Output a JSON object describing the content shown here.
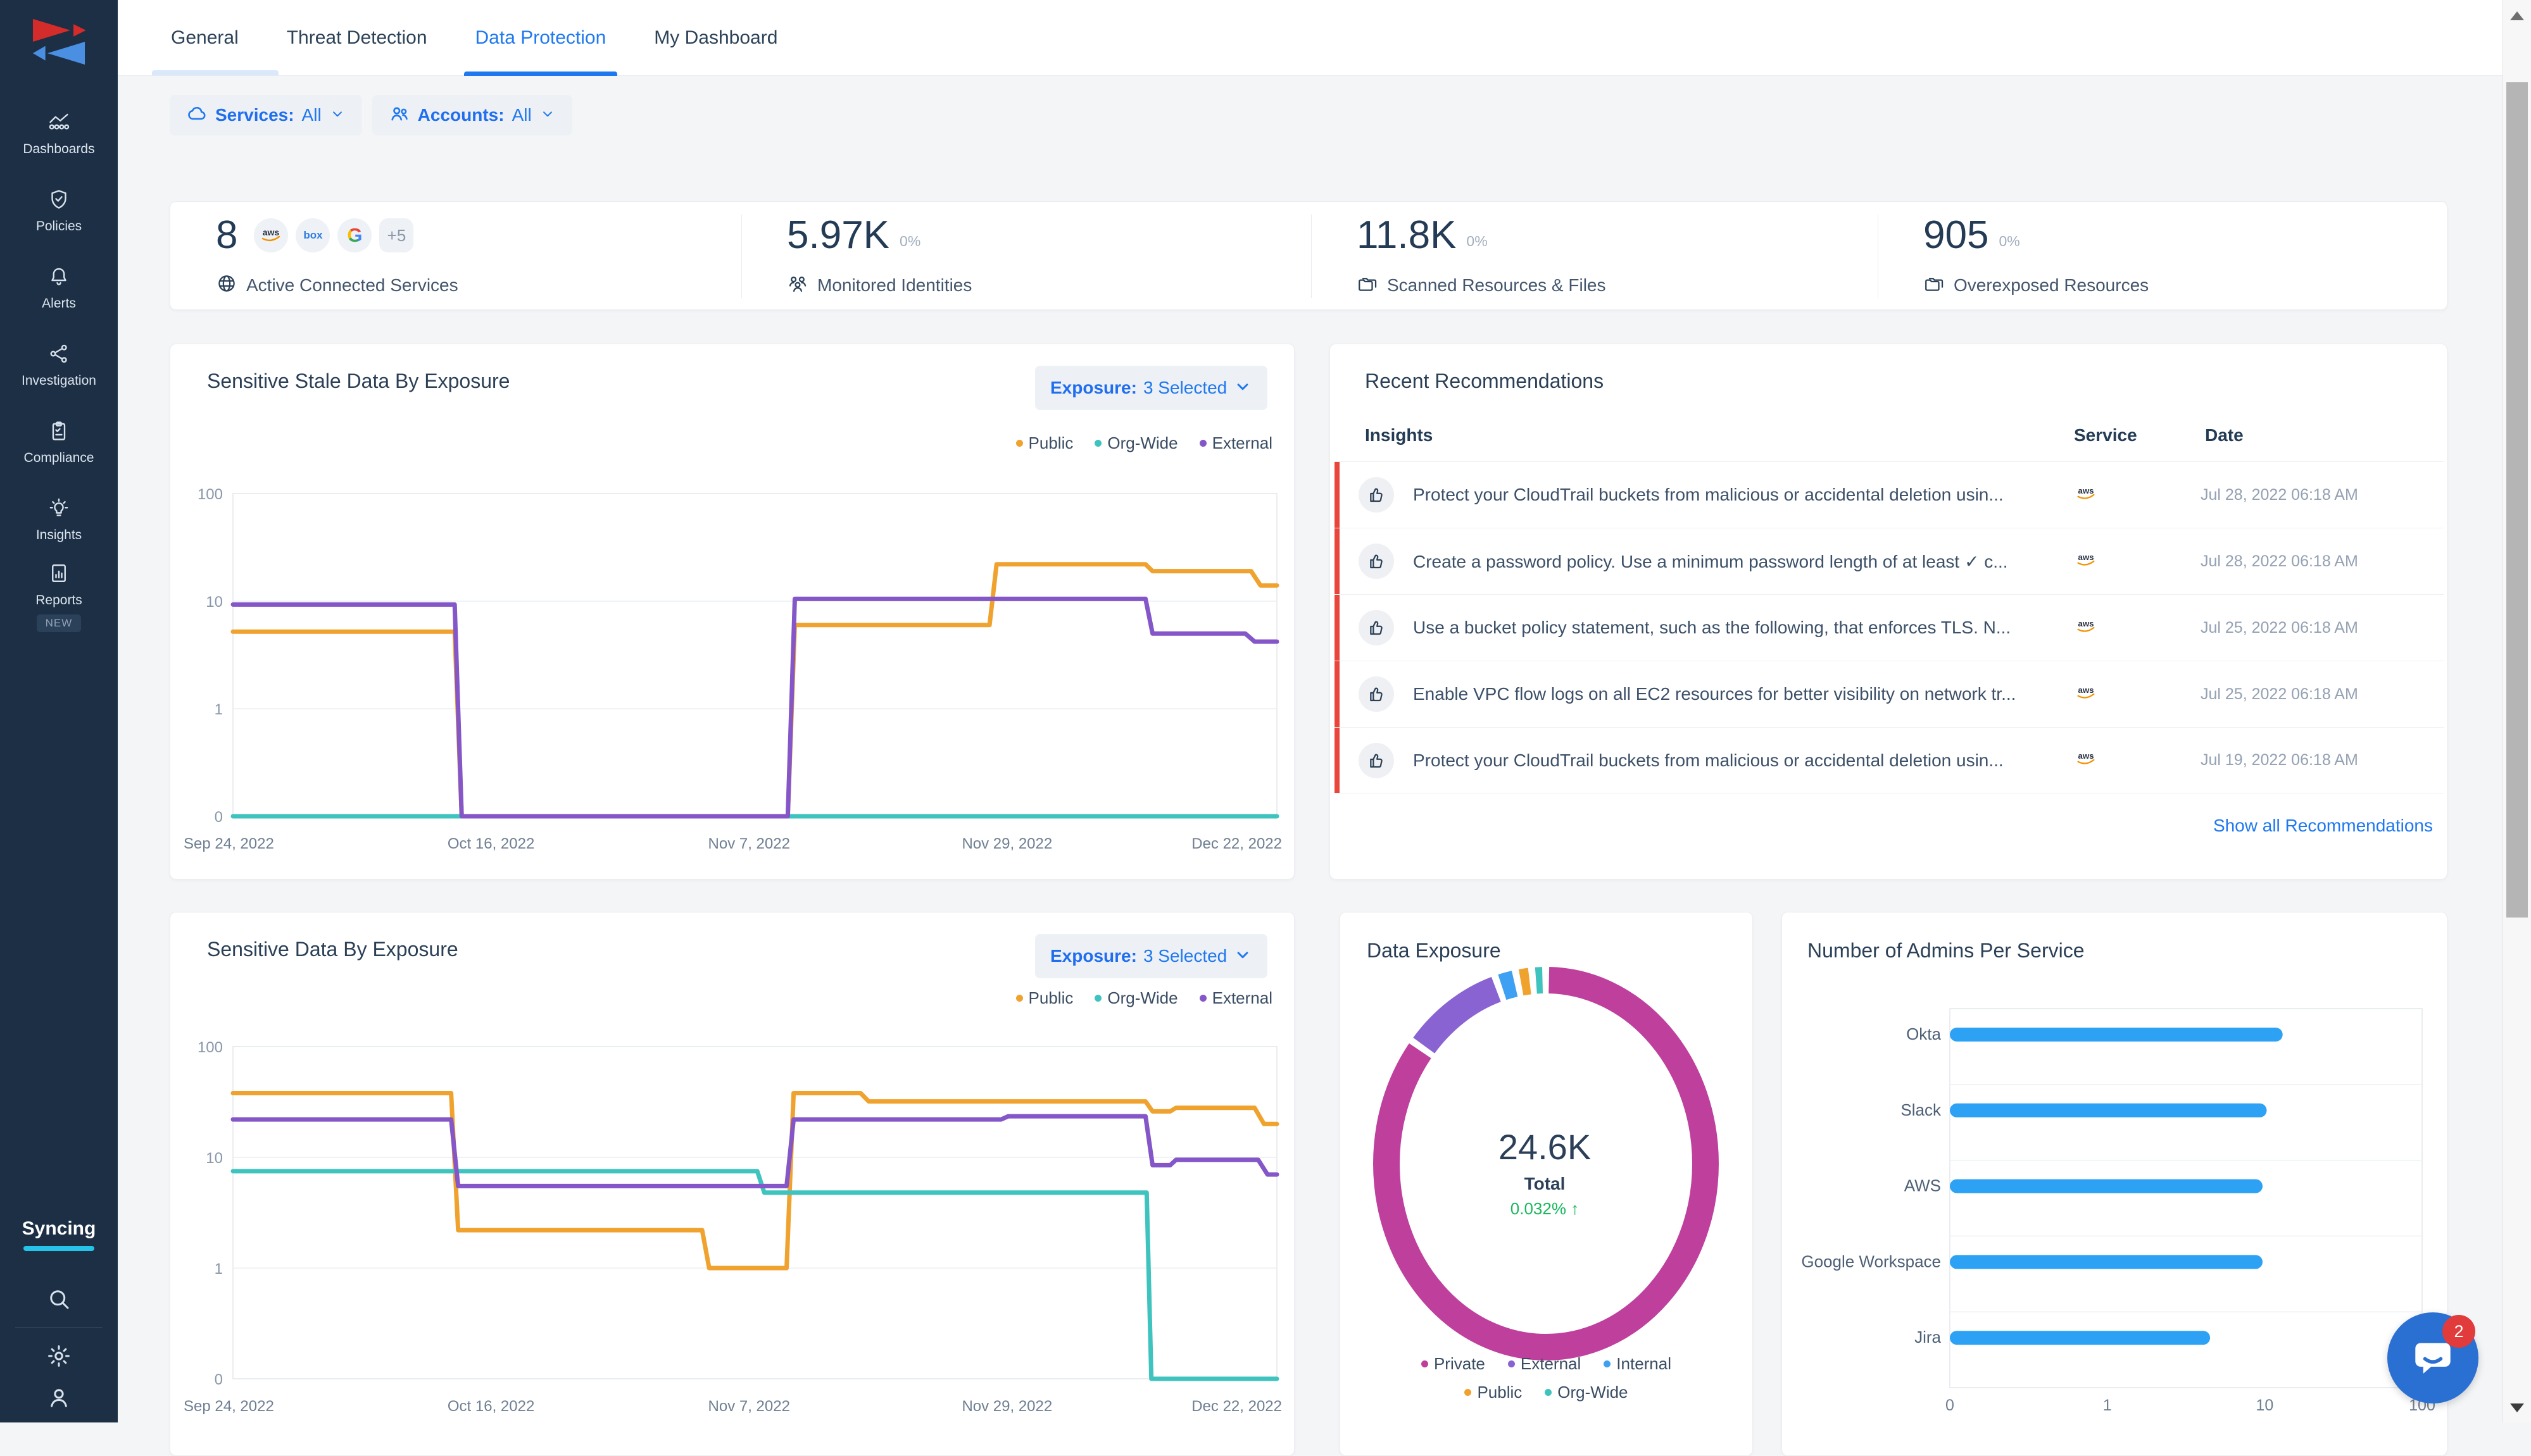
{
  "sidebar": {
    "items": [
      {
        "label": "Dashboards"
      },
      {
        "label": "Policies"
      },
      {
        "label": "Alerts"
      },
      {
        "label": "Investigation"
      },
      {
        "label": "Compliance"
      },
      {
        "label": "Insights"
      },
      {
        "label": "Reports"
      }
    ],
    "new_badge": "NEW",
    "syncing": "Syncing"
  },
  "tabs": [
    {
      "label": "General"
    },
    {
      "label": "Threat Detection"
    },
    {
      "label": "Data Protection",
      "active": true
    },
    {
      "label": "My Dashboard"
    }
  ],
  "filters": {
    "services_label": "Services:",
    "services_value": "All",
    "accounts_label": "Accounts:",
    "accounts_value": "All"
  },
  "stats": [
    {
      "value": "8",
      "label": "Active Connected Services",
      "services": [
        "aws",
        "box",
        "google"
      ],
      "more": "+5"
    },
    {
      "value": "5.97K",
      "delta": "0%",
      "label": "Monitored Identities"
    },
    {
      "value": "11.8K",
      "delta": "0%",
      "label": "Scanned Resources & Files"
    },
    {
      "value": "905",
      "delta": "0%",
      "label": "Overexposed Resources"
    }
  ],
  "recommendations": {
    "title": "Recent Recommendations",
    "columns": {
      "insights": "Insights",
      "service": "Service",
      "date": "Date"
    },
    "rows": [
      {
        "text": "Protect your CloudTrail buckets from malicious or accidental deletion usin...",
        "service": "aws",
        "date": "Jul 28, 2022 06:18 AM"
      },
      {
        "text": "Create a password policy. Use a minimum password length of at least ✓ c...",
        "service": "aws",
        "date": "Jul 28, 2022 06:18 AM"
      },
      {
        "text": "Use a bucket policy statement, such as the following, that enforces TLS. N...",
        "service": "aws",
        "date": "Jul 25, 2022 06:18 AM"
      },
      {
        "text": "Enable VPC flow logs on all EC2 resources for better visibility on network tr...",
        "service": "aws",
        "date": "Jul 25, 2022 06:18 AM"
      },
      {
        "text": "Protect your CloudTrail buckets from malicious or accidental deletion usin...",
        "service": "aws",
        "date": "Jul 19, 2022 06:18 AM"
      }
    ],
    "link": "Show all Recommendations"
  },
  "chart_data": [
    {
      "id": "stale",
      "type": "line",
      "title": "Sensitive Stale Data By Exposure",
      "filter_label": "Exposure:",
      "filter_value": "3 Selected",
      "yscale": "symlog",
      "yticks": [
        100,
        10,
        1,
        0
      ],
      "ylim": [
        0,
        100
      ],
      "grid": true,
      "legend_position": "top-right",
      "xticks": [
        "Sep 24, 2022",
        "Oct 16, 2022",
        "Nov 7, 2022",
        "Nov 29, 2022",
        "Dec 22, 2022"
      ],
      "xtick_days": [
        0,
        22,
        44,
        66,
        89
      ],
      "x_range_days": 89,
      "series": [
        {
          "name": "Public",
          "color": "#f0a22e",
          "points": [
            [
              0,
              5.2
            ],
            [
              18.9,
              5.2
            ],
            [
              19.5,
              0
            ],
            [
              47.3,
              0
            ],
            [
              47.9,
              6
            ],
            [
              64.5,
              6
            ],
            [
              65.1,
              22
            ],
            [
              77.8,
              22
            ],
            [
              78.4,
              19
            ],
            [
              86.8,
              19
            ],
            [
              87.6,
              14
            ],
            [
              89,
              14
            ]
          ]
        },
        {
          "name": "Org-Wide",
          "color": "#3fc3bf",
          "points": [
            [
              0,
              0
            ],
            [
              89,
              0
            ]
          ]
        },
        {
          "name": "External",
          "color": "#8456c8",
          "points": [
            [
              0,
              9.3
            ],
            [
              18.9,
              9.3
            ],
            [
              19.5,
              0
            ],
            [
              47.3,
              0
            ],
            [
              47.9,
              10.5
            ],
            [
              77.8,
              10.5
            ],
            [
              78.4,
              5
            ],
            [
              86.3,
              5
            ],
            [
              87.1,
              4.2
            ],
            [
              89,
              4.2
            ]
          ]
        }
      ]
    },
    {
      "id": "sensitive",
      "type": "line",
      "title": "Sensitive Data By Exposure",
      "filter_label": "Exposure:",
      "filter_value": "3 Selected",
      "yscale": "symlog",
      "yticks": [
        100,
        10,
        1,
        0
      ],
      "ylim": [
        0,
        100
      ],
      "grid": true,
      "legend_position": "top-right",
      "xticks": [
        "Sep 24, 2022",
        "Oct 16, 2022",
        "Nov 7, 2022",
        "Nov 29, 2022",
        "Dec 22, 2022"
      ],
      "xtick_days": [
        0,
        22,
        44,
        66,
        89
      ],
      "x_range_days": 89,
      "series": [
        {
          "name": "Public",
          "color": "#f0a22e",
          "points": [
            [
              0,
              38
            ],
            [
              18.6,
              38
            ],
            [
              19.2,
              2.2
            ],
            [
              40,
              2.2
            ],
            [
              40.6,
              1
            ],
            [
              47.2,
              1
            ],
            [
              47.8,
              38
            ],
            [
              53.5,
              38
            ],
            [
              54.2,
              32
            ],
            [
              77.8,
              32
            ],
            [
              78.4,
              26
            ],
            [
              79.9,
              26
            ],
            [
              80.4,
              28
            ],
            [
              87.1,
              28
            ],
            [
              87.9,
              20
            ],
            [
              89,
              20
            ]
          ]
        },
        {
          "name": "Org-Wide",
          "color": "#3fc3bf",
          "points": [
            [
              0,
              7.5
            ],
            [
              44.7,
              7.5
            ],
            [
              45.3,
              4.8
            ],
            [
              77.9,
              4.8
            ],
            [
              78.3,
              0
            ],
            [
              89,
              0
            ]
          ]
        },
        {
          "name": "External",
          "color": "#8456c8",
          "points": [
            [
              0,
              22
            ],
            [
              18.6,
              22
            ],
            [
              19.2,
              5.5
            ],
            [
              47.2,
              5.5
            ],
            [
              47.8,
              22
            ],
            [
              65.5,
              22
            ],
            [
              66.1,
              23.5
            ],
            [
              77.8,
              23.5
            ],
            [
              78.4,
              8.5
            ],
            [
              79.9,
              8.5
            ],
            [
              80.4,
              9.5
            ],
            [
              87.4,
              9.5
            ],
            [
              88.2,
              7
            ],
            [
              89,
              7
            ]
          ]
        }
      ]
    },
    {
      "id": "exposure",
      "type": "pie",
      "title": "Data Exposure",
      "total": "24.6K",
      "total_label": "Total",
      "delta": "0.032%",
      "delta_arrow": "↑",
      "slices": [
        {
          "name": "Private",
          "color": "#bf3f9d",
          "pct": 86.4
        },
        {
          "name": "External",
          "color": "#8a63d2",
          "pct": 9.2
        },
        {
          "name": "Internal",
          "color": "#3da0f2",
          "pct": 1.8
        },
        {
          "name": "Public",
          "color": "#f0a22e",
          "pct": 1.4
        },
        {
          "name": "Org-Wide",
          "color": "#3fc3bf",
          "pct": 1.2
        }
      ],
      "note": "slice percentages estimated from arc lengths; values not labeled on screen"
    },
    {
      "id": "admins",
      "type": "bar",
      "title": "Number of Admins Per Service",
      "orientation": "horizontal",
      "categories": [
        "Okta",
        "Slack",
        "AWS",
        "Google Workspace",
        "Jira"
      ],
      "values": [
        13,
        10.3,
        9.7,
        9.7,
        4.5
      ],
      "xscale": "symlog",
      "xticks": [
        0,
        1,
        10,
        100
      ],
      "xlim": [
        0,
        100
      ],
      "color": "#2da2f5",
      "note": "values estimated from bar lengths on log axis"
    }
  ],
  "chat": {
    "badge": "2"
  }
}
